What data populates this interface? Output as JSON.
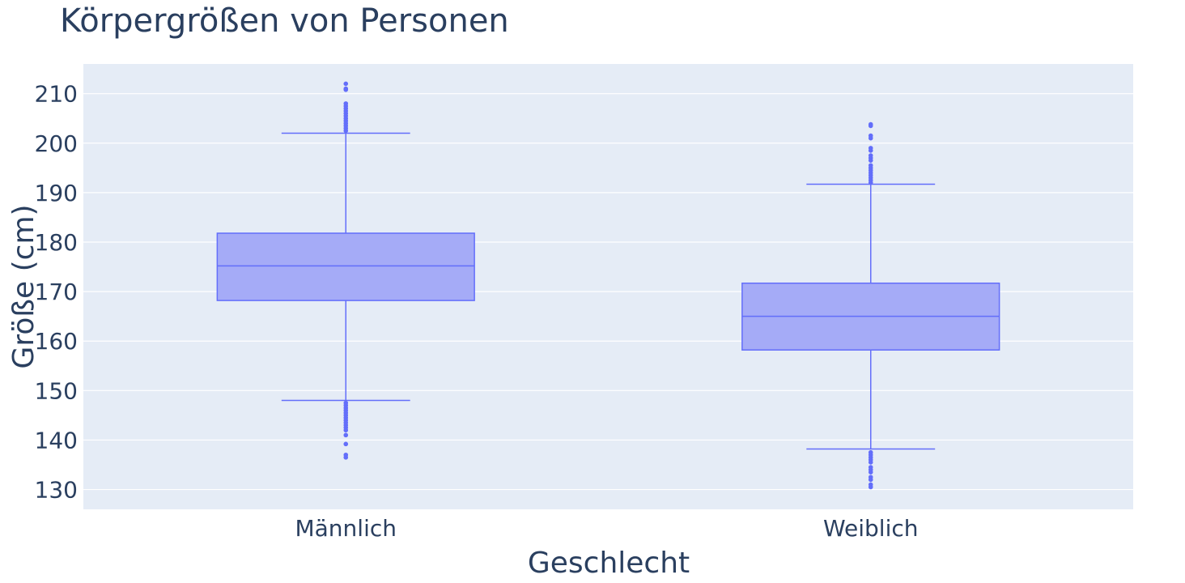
{
  "chart_data": {
    "type": "box",
    "title": "Körpergrößen von Personen",
    "xlabel": "Geschlecht",
    "ylabel": "Größe (cm)",
    "categories": [
      "Männlich",
      "Weiblich"
    ],
    "ylim": [
      126,
      216
    ],
    "yticks": [
      130,
      140,
      150,
      160,
      170,
      180,
      190,
      200,
      210
    ],
    "grid": true,
    "legend": "none",
    "colors": {
      "plot_bg": "#e5ecf6",
      "box_fill": "#a5abf7",
      "box_line": "#636efa",
      "text": "#2a3f5f"
    },
    "boxes": [
      {
        "name": "Männlich",
        "lower_fence": 148,
        "q1": 168.2,
        "median": 175.2,
        "q3": 181.8,
        "upper_fence": 202,
        "outliers": [
          212,
          211,
          210.8,
          208,
          207.5,
          207,
          206.5,
          206,
          205.5,
          205,
          204.5,
          204,
          203.5,
          203,
          202.5,
          147.5,
          147,
          146.5,
          146,
          145.5,
          145,
          144.5,
          144,
          143.5,
          143,
          142.5,
          142,
          141,
          139.2,
          137,
          136.5
        ]
      },
      {
        "name": "Weiblich",
        "lower_fence": 138.2,
        "q1": 158.2,
        "median": 165,
        "q3": 171.7,
        "upper_fence": 191.7,
        "outliers": [
          203.8,
          203.5,
          201.5,
          201,
          199,
          198.5,
          197.5,
          197,
          196.5,
          195.5,
          195,
          194.5,
          194,
          193.5,
          193,
          192.5,
          192,
          137.5,
          137,
          136.5,
          136,
          135.5,
          134.5,
          134,
          133.5,
          132.5,
          132,
          131,
          130.5
        ]
      }
    ]
  }
}
